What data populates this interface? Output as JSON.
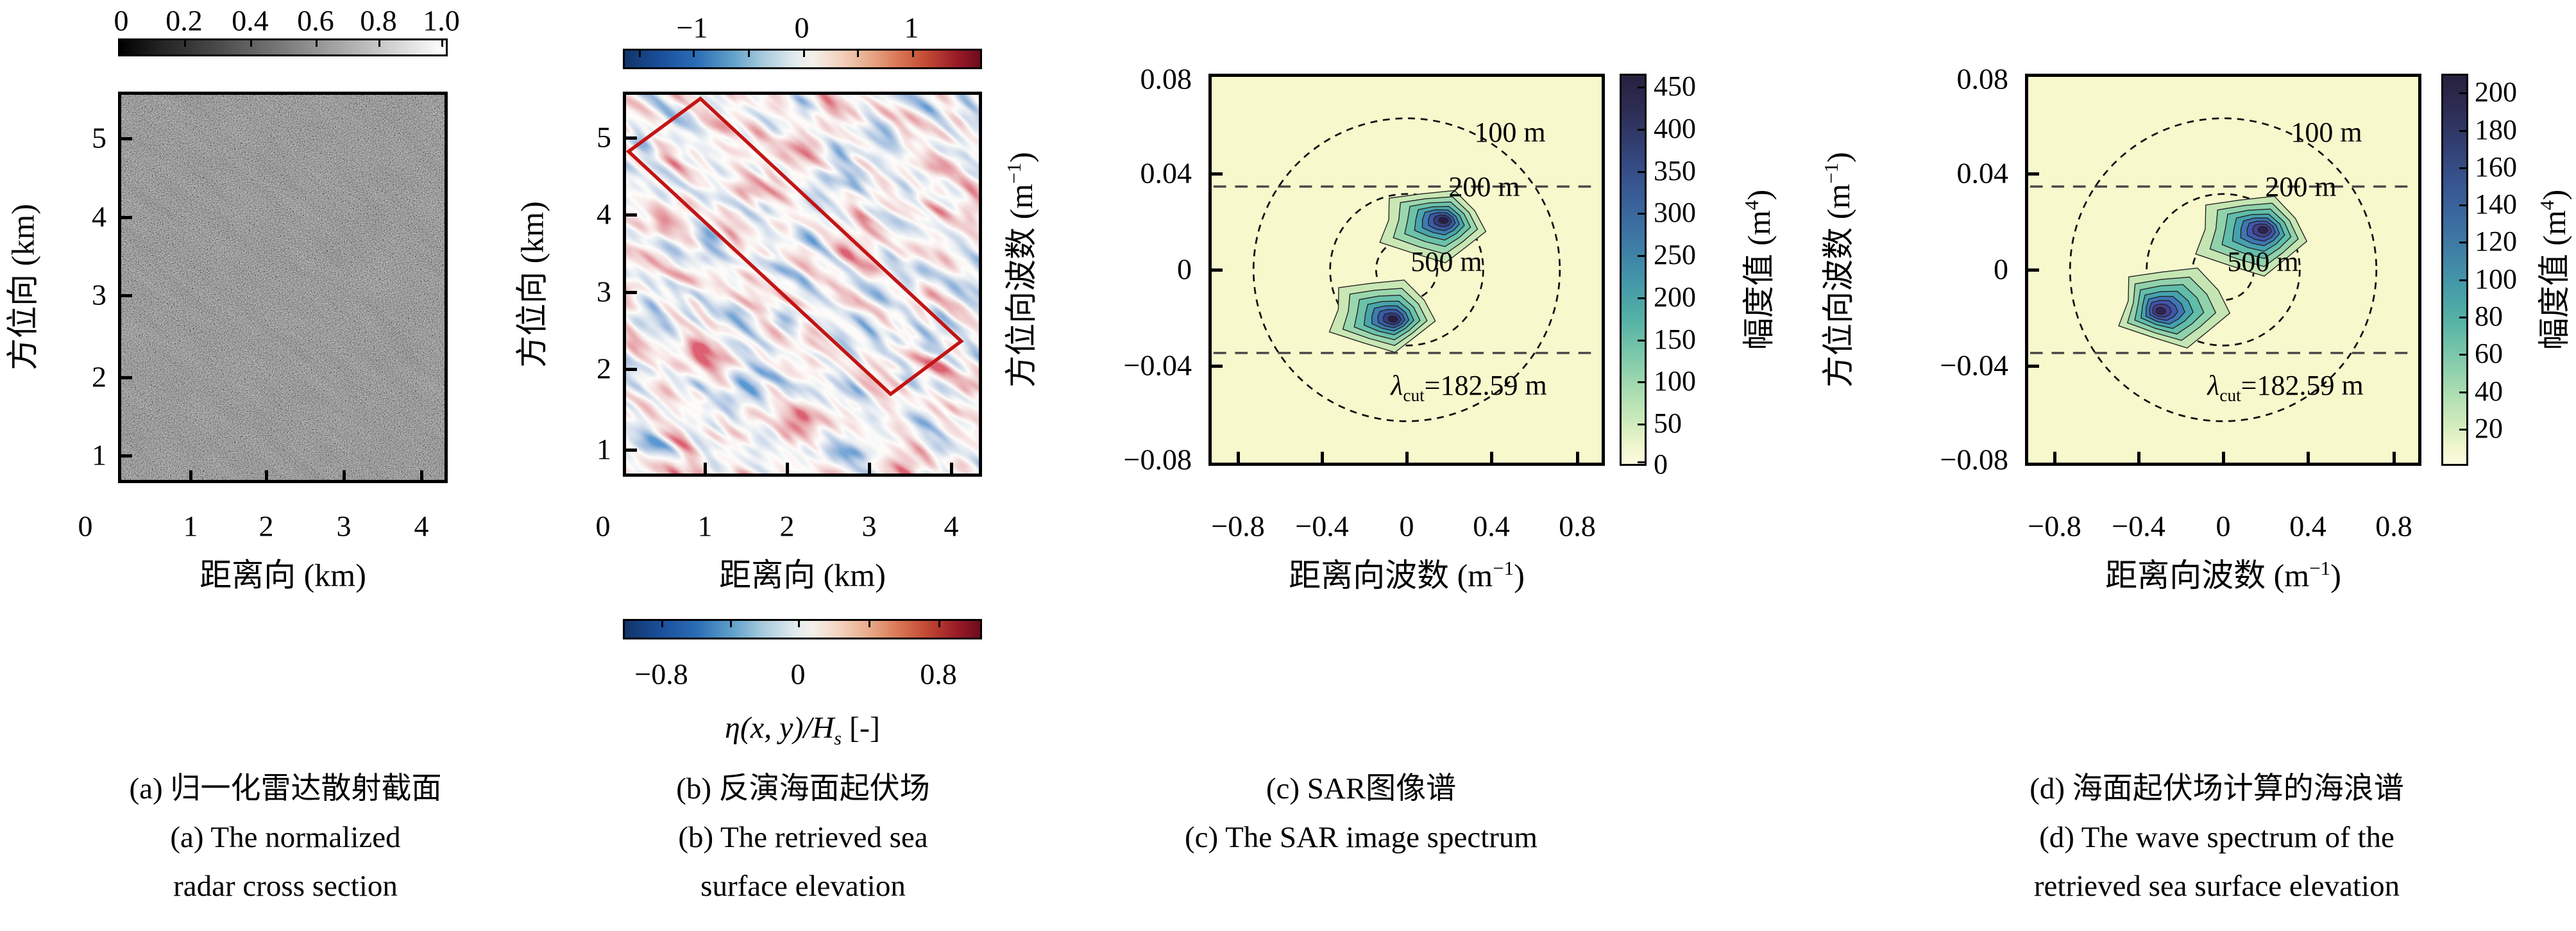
{
  "panel_a": {
    "colorbar_ticks": [
      "0",
      "0.2",
      "0.4",
      "0.6",
      "0.8",
      "1.0"
    ],
    "yticks": [
      "5",
      "4",
      "3",
      "2",
      "1"
    ],
    "xticks": [
      "0",
      "1",
      "2",
      "3",
      "4"
    ],
    "ylabel": "方位向 (km)",
    "xlabel": "距离向 (km)"
  },
  "panel_b": {
    "colorbar_top_ticks": [
      "−1",
      "0",
      "1"
    ],
    "yticks": [
      "5",
      "4",
      "3",
      "2",
      "1"
    ],
    "xticks": [
      "0",
      "1",
      "2",
      "3",
      "4"
    ],
    "ylabel": "方位向 (km)",
    "xlabel": "距离向 (km)",
    "colorbar_bottom_ticks": [
      "−0.8",
      "0",
      "0.8"
    ],
    "eta_label": {
      "pre": "η(x, y)/H",
      "sub": "s",
      "post": " [-]"
    }
  },
  "panel_c": {
    "yticks": [
      "0.08",
      "0.04",
      "0",
      "−0.04",
      "−0.08"
    ],
    "xticks": [
      "−0.8",
      "−0.4",
      "0",
      "0.4",
      "0.8"
    ],
    "ylabel": {
      "pre": "方位向波数 (m",
      "sup": "−1",
      "post": ")"
    },
    "xlabel": {
      "pre": "距离向波数 (m",
      "sup": "−1",
      "post": ")"
    },
    "colorbar_ticks": [
      "450",
      "400",
      "350",
      "300",
      "250",
      "200",
      "150",
      "100",
      "50",
      "0"
    ],
    "colorbar_label": {
      "pre": "幅度值 (m",
      "sup": "4",
      "post": ")"
    },
    "ring_labels": [
      "100 m",
      "200 m",
      "500 m"
    ],
    "cutoff_annotation": {
      "pre": "λ",
      "sub": "cut",
      "post": "=182.59 m"
    }
  },
  "panel_d": {
    "yticks": [
      "0.08",
      "0.04",
      "0",
      "−0.04",
      "−0.08"
    ],
    "xticks": [
      "−0.8",
      "−0.4",
      "0",
      "0.4",
      "0.8"
    ],
    "ylabel": {
      "pre": "方位向波数 (m",
      "sup": "−1",
      "post": ")"
    },
    "xlabel": {
      "pre": "距离向波数 (m",
      "sup": "−1",
      "post": ")"
    },
    "colorbar_ticks": [
      "200",
      "180",
      "160",
      "140",
      "120",
      "100",
      "80",
      "60",
      "40",
      "20"
    ],
    "colorbar_label": {
      "pre": "幅度值 (m",
      "sup": "4",
      "post": ")"
    },
    "ring_labels": [
      "100 m",
      "200 m",
      "500 m"
    ],
    "cutoff_annotation": {
      "pre": "λ",
      "sub": "cut",
      "post": "=182.59 m"
    }
  },
  "captions": {
    "a": [
      "(a) 归一化雷达散射截面",
      "(a) The normalized",
      "radar cross section"
    ],
    "b": [
      "(b) 反演海面起伏场",
      "(b) The retrieved sea",
      "surface elevation"
    ],
    "c": [
      "(c) SAR图像谱",
      "(c) The SAR image spectrum"
    ],
    "d": [
      "(d) 海面起伏场计算的海浪谱",
      "(d) The wave spectrum of the",
      "retrieved sea surface elevation"
    ]
  },
  "chart_data": [
    {
      "panel": "a",
      "type": "heatmap",
      "title": "归一化雷达散射截面 / The normalized radar cross section",
      "xlabel": "距离向 (km)",
      "ylabel": "方位向 (km)",
      "xticks": [
        0,
        1,
        2,
        3,
        4
      ],
      "yticks": [
        1,
        2,
        3,
        4,
        5
      ],
      "colormap": "grayscale",
      "colorbar": {
        "position": "top",
        "range": [
          0,
          1
        ],
        "ticks": [
          0,
          0.2,
          0.4,
          0.6,
          0.8,
          1.0
        ]
      },
      "content": "SAR speckle intensity image with faint diagonal wave streaks oriented upper-left to lower-right"
    },
    {
      "panel": "b",
      "type": "heatmap",
      "title": "反演海面起伏场 / The retrieved sea surface elevation",
      "xlabel": "距离向 (km)",
      "ylabel": "方位向 (km)",
      "xticks": [
        0,
        1,
        2,
        3,
        4
      ],
      "yticks": [
        1,
        2,
        3,
        4,
        5
      ],
      "colormap": "RdBu_r (blue-white-red)",
      "colorbar_top": {
        "position": "top",
        "ticks": [
          -1,
          0,
          1
        ],
        "tick_step": 0.5
      },
      "colorbar_bottom": {
        "position": "bottom",
        "ticks": [
          -0.8,
          0,
          0.8
        ],
        "label": "η(x, y)/Hs [-]"
      },
      "annotations": [
        "red rotated rectangular analysis sub-region, long axis tilted ~43° from horizontal, running upper-left to lower-right"
      ],
      "content": "normalized sea-surface elevation field with diagonal wave crests"
    },
    {
      "panel": "c",
      "type": "contour",
      "title": "SAR图像谱 / The SAR image spectrum",
      "xlabel": "距离向波数 (m⁻¹)",
      "ylabel": "方位向波数 (m⁻¹)",
      "xticks": [
        -0.8,
        -0.4,
        0,
        0.4,
        0.8
      ],
      "yticks": [
        -0.08,
        -0.04,
        0,
        0.04,
        0.08
      ],
      "background_amplitude": 0,
      "colorbar": {
        "label": "幅度值 (m⁴)",
        "range": [
          0,
          465
        ],
        "ticks": [
          0,
          50,
          100,
          150,
          200,
          250,
          300,
          350,
          400,
          450
        ]
      },
      "wavelength_rings_m": [
        100,
        200,
        500
      ],
      "azimuth_cutoff": {
        "annotation": "λcut=182.59 m",
        "lambda_m": 182.59,
        "k_cut_per_m": 0.0344,
        "dashed_lines_at_ky": [
          0.0344,
          -0.0344
        ]
      },
      "peaks": [
        {
          "kx": 0.13,
          "ky": 0.018,
          "amplitude": 450
        },
        {
          "kx": -0.13,
          "ky": -0.018,
          "amplitude": 430
        }
      ]
    },
    {
      "panel": "d",
      "type": "contour",
      "title": "海面起伏场计算的海浪谱 / The wave spectrum of the retrieved sea surface elevation",
      "xlabel": "距离向波数 (m⁻¹)",
      "ylabel": "方位向波数 (m⁻¹)",
      "xticks": [
        -0.8,
        -0.4,
        0,
        0.4,
        0.8
      ],
      "yticks": [
        -0.08,
        -0.04,
        0,
        0.04,
        0.08
      ],
      "background_amplitude": 0,
      "colorbar": {
        "label": "幅度值 (m⁴)",
        "range": [
          0,
          210
        ],
        "ticks": [
          20,
          40,
          60,
          80,
          100,
          120,
          140,
          160,
          180,
          200
        ]
      },
      "wavelength_rings_m": [
        100,
        200,
        500
      ],
      "azimuth_cutoff": {
        "annotation": "λcut=182.59 m",
        "lambda_m": 182.59,
        "k_cut_per_m": 0.0344,
        "dashed_lines_at_ky": [
          0.0344,
          -0.0344
        ]
      },
      "peaks": [
        {
          "kx": 0.14,
          "ky": 0.016,
          "amplitude": 200
        },
        {
          "kx": -0.14,
          "ky": -0.016,
          "amplitude": 190
        }
      ]
    }
  ]
}
